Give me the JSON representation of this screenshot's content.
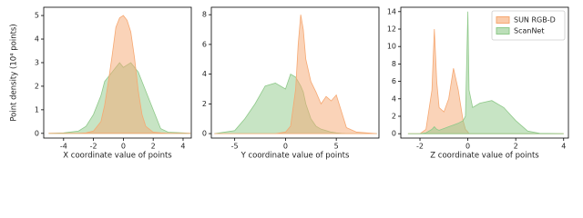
{
  "chart_data": [
    {
      "type": "area",
      "xlabel": "X coordinate value of points",
      "ylabel": "Point density (10⁴ points)",
      "x": [
        -5,
        -4,
        -3,
        -2.5,
        -2,
        -1.5,
        -1.25,
        -1,
        -0.75,
        -0.5,
        -0.25,
        0,
        0.25,
        0.5,
        0.75,
        1,
        1.25,
        1.5,
        2,
        2.5,
        3,
        4,
        4.5
      ],
      "series": [
        {
          "color": "#8fc98a",
          "values": [
            0,
            0.02,
            0.1,
            0.3,
            0.8,
            1.6,
            2.2,
            2.4,
            2.6,
            2.8,
            3.0,
            2.8,
            2.9,
            3.0,
            2.8,
            2.6,
            2.2,
            1.8,
            1.0,
            0.2,
            0.05,
            0.02,
            0
          ]
        },
        {
          "color": "#f6a872",
          "values": [
            0,
            0,
            0,
            0.02,
            0.1,
            0.5,
            1.2,
            2.2,
            3.3,
            4.5,
            4.9,
            5.0,
            4.8,
            4.3,
            3.2,
            1.8,
            0.8,
            0.3,
            0.05,
            0.02,
            0,
            0,
            0
          ]
        }
      ],
      "xlim": [
        -5.33,
        4.55
      ],
      "xticks": [
        -4,
        -2,
        0,
        2,
        4
      ],
      "ylim": [
        -0.2,
        5.35
      ],
      "yticks": [
        0,
        1,
        2,
        3,
        4,
        5
      ]
    },
    {
      "type": "area",
      "xlabel": "Y coordinate value of points",
      "x": [
        -7,
        -5,
        -4,
        -3,
        -2,
        -1,
        0,
        0.5,
        1,
        1.25,
        1.5,
        1.75,
        2,
        2.5,
        3,
        3.5,
        4,
        4.5,
        5,
        5.5,
        6,
        7,
        8,
        9
      ],
      "series": [
        {
          "color": "#8fc98a",
          "values": [
            0,
            0.2,
            1,
            2,
            3.2,
            3.4,
            3.0,
            4.0,
            3.8,
            3.5,
            3.2,
            2.8,
            2.0,
            1.0,
            0.5,
            0.3,
            0.2,
            0.1,
            0.05,
            0.02,
            0,
            0,
            0,
            0
          ]
        },
        {
          "color": "#f6a872",
          "values": [
            0,
            0,
            0,
            0,
            0,
            0,
            0.1,
            0.5,
            3,
            6,
            8,
            7,
            5,
            3.5,
            2.8,
            2,
            2.5,
            2.2,
            2.6,
            1.5,
            0.4,
            0.1,
            0.05,
            0
          ]
        }
      ],
      "xlim": [
        -7.3,
        9.2
      ],
      "xticks": [
        -5,
        0,
        5
      ],
      "ylim": [
        -0.3,
        8.5
      ],
      "yticks": [
        0,
        2,
        4,
        6,
        8
      ]
    },
    {
      "type": "area",
      "xlabel": "Z coordinate value of points",
      "legend": "upper right",
      "x": [
        -2.5,
        -2,
        -1.75,
        -1.5,
        -1.4,
        -1.3,
        -1.2,
        -1,
        -0.8,
        -0.6,
        -0.4,
        -0.2,
        -0.1,
        0,
        0.05,
        0.2,
        0.5,
        1,
        1.5,
        2,
        2.5,
        3,
        4
      ],
      "series": [
        {
          "name": "SUN RGB-D",
          "color": "#f6a872",
          "values": [
            0,
            0,
            0.5,
            5,
            12,
            6,
            3,
            2.5,
            4,
            7.5,
            5,
            1.5,
            0.5,
            0.2,
            0,
            0,
            0,
            0,
            0,
            0,
            0,
            0,
            0
          ]
        },
        {
          "name": "ScanNet",
          "color": "#8fc98a",
          "values": [
            0,
            0,
            0.1,
            0.5,
            0.8,
            0.5,
            0.4,
            0.6,
            0.8,
            1,
            1.2,
            1.5,
            2,
            14,
            5,
            3,
            3.5,
            3.8,
            3,
            1.5,
            0.3,
            0.05,
            0
          ]
        }
      ],
      "xlim": [
        -2.8,
        4.2
      ],
      "xticks": [
        -2,
        0,
        2,
        4
      ],
      "ylim": [
        -0.5,
        14.5
      ],
      "yticks": [
        0,
        2,
        4,
        6,
        8,
        10,
        12,
        14
      ]
    }
  ]
}
